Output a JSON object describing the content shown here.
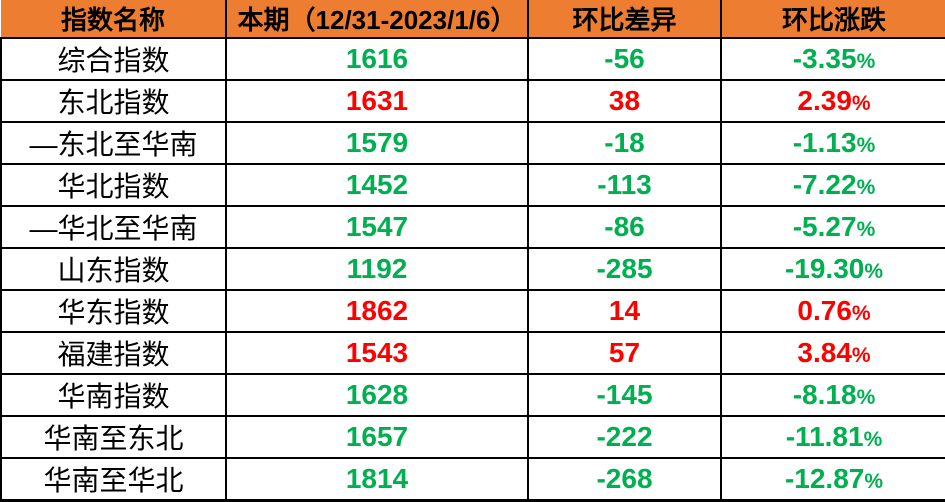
{
  "chart_data": {
    "type": "table",
    "columns": [
      "指数名称",
      "本期（12/31-2023/1/6）",
      "环比差异",
      "环比涨跌"
    ],
    "rows": [
      {
        "name": "综合指数",
        "current": 1616,
        "diff": -56,
        "pct": "-3.35"
      },
      {
        "name": "东北指数",
        "current": 1631,
        "diff": 38,
        "pct": "2.39"
      },
      {
        "name": "—东北至华南",
        "current": 1579,
        "diff": -18,
        "pct": "-1.13"
      },
      {
        "name": "华北指数",
        "current": 1452,
        "diff": -113,
        "pct": "-7.22"
      },
      {
        "name": "—华北至华南",
        "current": 1547,
        "diff": -86,
        "pct": "-5.27"
      },
      {
        "name": "山东指数",
        "current": 1192,
        "diff": -285,
        "pct": "-19.30"
      },
      {
        "name": "华东指数",
        "current": 1862,
        "diff": 14,
        "pct": "0.76"
      },
      {
        "name": "福建指数",
        "current": 1543,
        "diff": 57,
        "pct": "3.84"
      },
      {
        "name": "华南指数",
        "current": 1628,
        "diff": -145,
        "pct": "-8.18"
      },
      {
        "name": "华南至东北",
        "current": 1657,
        "diff": -222,
        "pct": "-11.81"
      },
      {
        "name": "华南至华北",
        "current": 1814,
        "diff": -268,
        "pct": "-12.87"
      }
    ]
  },
  "symbols": {
    "percent": "%"
  },
  "colors": {
    "up": "#FF0000",
    "down": "#00B050",
    "header_bg": "#ED7D31",
    "header_text": "#000000",
    "border": "#000000"
  }
}
